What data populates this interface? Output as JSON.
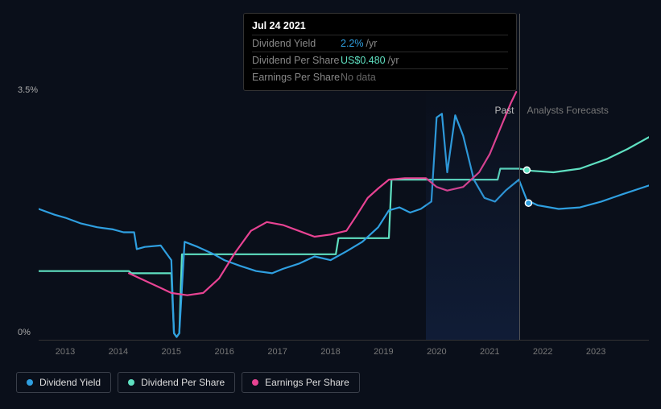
{
  "tooltip": {
    "date": "Jul 24 2021",
    "rows": [
      {
        "label": "Dividend Yield",
        "value": "2.2%",
        "unit": "/yr",
        "cls": "blue"
      },
      {
        "label": "Dividend Per Share",
        "value": "US$0.480",
        "unit": "/yr",
        "cls": "teal"
      },
      {
        "label": "Earnings Per Share",
        "value": "No data",
        "unit": "",
        "cls": "nodata"
      }
    ]
  },
  "yaxis": {
    "max_label": "3.5%",
    "min_label": "0%",
    "ymax": 3.5,
    "ymin": 0
  },
  "xaxis": {
    "years": [
      2013,
      2014,
      2015,
      2016,
      2017,
      2018,
      2019,
      2020,
      2021,
      2022,
      2023
    ],
    "xmin": 2012.5,
    "xmax": 2024.0
  },
  "separator": {
    "x_year": 2021.55,
    "past_label": "Past",
    "forecast_label": "Analysts Forecasts"
  },
  "tooltip_xline": 2021.55,
  "colors": {
    "dividend_yield": "#2f9fe0",
    "dividend_per_share": "#5fe0c1",
    "earnings_per_share": "#e84393",
    "background": "#0a0f1a"
  },
  "series": {
    "dividend_yield": [
      [
        2012.5,
        1.8
      ],
      [
        2012.8,
        1.72
      ],
      [
        2013.0,
        1.68
      ],
      [
        2013.3,
        1.6
      ],
      [
        2013.6,
        1.55
      ],
      [
        2013.9,
        1.52
      ],
      [
        2014.1,
        1.48
      ],
      [
        2014.3,
        1.48
      ],
      [
        2014.35,
        1.25
      ],
      [
        2014.5,
        1.28
      ],
      [
        2014.8,
        1.3
      ],
      [
        2015.0,
        1.1
      ],
      [
        2015.05,
        0.1
      ],
      [
        2015.1,
        0.05
      ],
      [
        2015.15,
        0.1
      ],
      [
        2015.25,
        1.35
      ],
      [
        2015.5,
        1.28
      ],
      [
        2015.8,
        1.18
      ],
      [
        2016.0,
        1.1
      ],
      [
        2016.3,
        1.02
      ],
      [
        2016.6,
        0.95
      ],
      [
        2016.9,
        0.92
      ],
      [
        2017.1,
        0.98
      ],
      [
        2017.4,
        1.05
      ],
      [
        2017.7,
        1.15
      ],
      [
        2018.0,
        1.1
      ],
      [
        2018.3,
        1.22
      ],
      [
        2018.6,
        1.35
      ],
      [
        2018.9,
        1.55
      ],
      [
        2019.1,
        1.78
      ],
      [
        2019.3,
        1.82
      ],
      [
        2019.5,
        1.75
      ],
      [
        2019.7,
        1.8
      ],
      [
        2019.9,
        1.9
      ],
      [
        2020.0,
        3.05
      ],
      [
        2020.1,
        3.1
      ],
      [
        2020.2,
        2.3
      ],
      [
        2020.35,
        3.08
      ],
      [
        2020.5,
        2.8
      ],
      [
        2020.7,
        2.2
      ],
      [
        2020.9,
        1.95
      ],
      [
        2021.1,
        1.9
      ],
      [
        2021.3,
        2.05
      ],
      [
        2021.55,
        2.2
      ]
    ],
    "dividend_yield_forecast": [
      [
        2021.55,
        2.2
      ],
      [
        2021.7,
        1.92
      ],
      [
        2021.9,
        1.85
      ],
      [
        2022.3,
        1.8
      ],
      [
        2022.7,
        1.82
      ],
      [
        2023.1,
        1.9
      ],
      [
        2023.5,
        2.0
      ],
      [
        2024.0,
        2.12
      ]
    ],
    "dividend_per_share": [
      [
        2012.5,
        0.95
      ],
      [
        2014.2,
        0.95
      ],
      [
        2014.25,
        0.92
      ],
      [
        2015.0,
        0.92
      ],
      [
        2015.05,
        0.1
      ],
      [
        2015.1,
        0.05
      ],
      [
        2015.15,
        0.1
      ],
      [
        2015.2,
        1.18
      ],
      [
        2015.25,
        1.18
      ],
      [
        2015.3,
        1.18
      ],
      [
        2018.1,
        1.18
      ],
      [
        2018.15,
        1.4
      ],
      [
        2019.1,
        1.4
      ],
      [
        2019.15,
        2.2
      ],
      [
        2021.15,
        2.2
      ],
      [
        2021.2,
        2.35
      ],
      [
        2021.55,
        2.35
      ]
    ],
    "dividend_per_share_forecast": [
      [
        2021.55,
        2.35
      ],
      [
        2021.8,
        2.32
      ],
      [
        2022.2,
        2.3
      ],
      [
        2022.7,
        2.35
      ],
      [
        2023.2,
        2.48
      ],
      [
        2023.6,
        2.62
      ],
      [
        2024.0,
        2.78
      ]
    ],
    "earnings_per_share": [
      [
        2014.2,
        0.92
      ],
      [
        2014.5,
        0.82
      ],
      [
        2014.8,
        0.72
      ],
      [
        2015.0,
        0.65
      ],
      [
        2015.3,
        0.62
      ],
      [
        2015.6,
        0.65
      ],
      [
        2015.9,
        0.85
      ],
      [
        2016.2,
        1.2
      ],
      [
        2016.5,
        1.5
      ],
      [
        2016.8,
        1.62
      ],
      [
        2017.1,
        1.58
      ],
      [
        2017.4,
        1.5
      ],
      [
        2017.7,
        1.42
      ],
      [
        2018.0,
        1.45
      ],
      [
        2018.3,
        1.5
      ],
      [
        2018.5,
        1.72
      ],
      [
        2018.7,
        1.95
      ],
      [
        2018.9,
        2.08
      ],
      [
        2019.1,
        2.2
      ],
      [
        2019.4,
        2.22
      ],
      [
        2019.8,
        2.22
      ],
      [
        2020.0,
        2.1
      ],
      [
        2020.2,
        2.05
      ],
      [
        2020.5,
        2.1
      ],
      [
        2020.8,
        2.3
      ],
      [
        2021.0,
        2.55
      ],
      [
        2021.2,
        2.9
      ],
      [
        2021.4,
        3.25
      ],
      [
        2021.5,
        3.4
      ]
    ]
  },
  "markers": [
    {
      "series": "dividend_per_share_forecast",
      "x": 2021.7,
      "y": 2.33,
      "color": "#5fe0c1"
    },
    {
      "series": "dividend_yield_forecast",
      "x": 2021.73,
      "y": 1.88,
      "color": "#2f9fe0"
    }
  ],
  "legend": [
    {
      "label": "Dividend Yield",
      "color": "#2f9fe0"
    },
    {
      "label": "Dividend Per Share",
      "color": "#5fe0c1"
    },
    {
      "label": "Earnings Per Share",
      "color": "#e84393"
    }
  ]
}
